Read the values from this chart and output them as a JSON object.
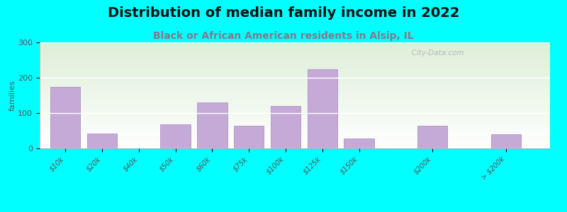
{
  "title": "Distribution of median family income in 2022",
  "subtitle": "Black or African American residents in Alsip, IL",
  "ylabel": "families",
  "background_color": "#00FFFF",
  "bar_color": "#c5aad8",
  "bar_edge_color": "#b090c8",
  "categories": [
    "$10k",
    "$20k",
    "$40k",
    "$50k",
    "$60k",
    "$75k",
    "$100k",
    "$125k",
    "$150k",
    "$200k",
    "> $200k"
  ],
  "values": [
    175,
    42,
    0,
    68,
    130,
    65,
    120,
    225,
    28,
    65,
    40
  ],
  "bar_widths": [
    1,
    1,
    1,
    1,
    1,
    1,
    1,
    1,
    1,
    1,
    1
  ],
  "bar_positions": [
    0,
    1,
    2,
    3,
    4,
    5,
    6,
    7,
    8,
    10,
    12
  ],
  "xlim": [
    -0.7,
    13.2
  ],
  "ylim": [
    0,
    300
  ],
  "yticks": [
    0,
    100,
    200,
    300
  ],
  "title_fontsize": 14,
  "subtitle_fontsize": 10,
  "subtitle_color": "#887788",
  "ylabel_fontsize": 8,
  "tick_fontsize": 7,
  "watermark": "  City-Data.com",
  "gradient_top": "#deefd8",
  "gradient_bottom": "#ffffff"
}
